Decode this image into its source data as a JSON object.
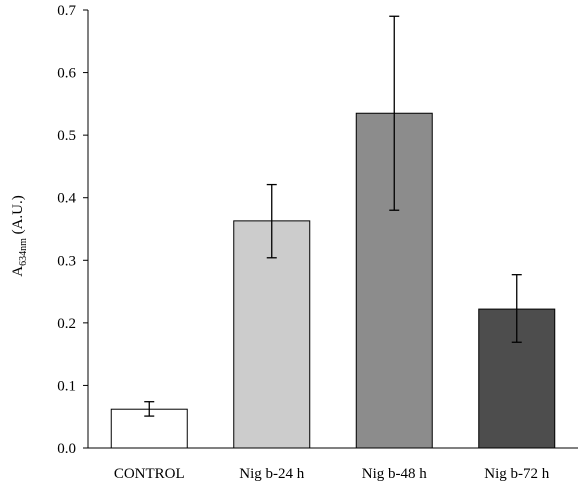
{
  "chart_data": {
    "type": "bar",
    "title": "",
    "xlabel": "",
    "ylabel": {
      "main": "A",
      "subscript": "634nm",
      "suffix": " (A.U.)"
    },
    "ylim": [
      0,
      0.7
    ],
    "yticks": [
      {
        "value": 0.0,
        "label": "0.0"
      },
      {
        "value": 0.1,
        "label": "0.1"
      },
      {
        "value": 0.2,
        "label": "0.2"
      },
      {
        "value": 0.3,
        "label": "0.3"
      },
      {
        "value": 0.4,
        "label": "0.4"
      },
      {
        "value": 0.5,
        "label": "0.5"
      },
      {
        "value": 0.6,
        "label": "0.6"
      },
      {
        "value": 0.7,
        "label": "0.7"
      }
    ],
    "grid": false,
    "legend": "none",
    "bars": [
      {
        "category": "CONTROL",
        "value": 0.062,
        "error_low": 0.051,
        "error_high": 0.074,
        "color": "#ffffff"
      },
      {
        "category": "Nig b-24 h",
        "value": 0.363,
        "error_low": 0.304,
        "error_high": 0.421,
        "color": "#cccccc"
      },
      {
        "category": "Nig b-48 h",
        "value": 0.535,
        "error_low": 0.38,
        "error_high": 0.69,
        "color": "#8c8c8c"
      },
      {
        "category": "Nig b-72 h",
        "value": 0.222,
        "error_low": 0.169,
        "error_high": 0.277,
        "color": "#4d4d4d"
      }
    ]
  }
}
